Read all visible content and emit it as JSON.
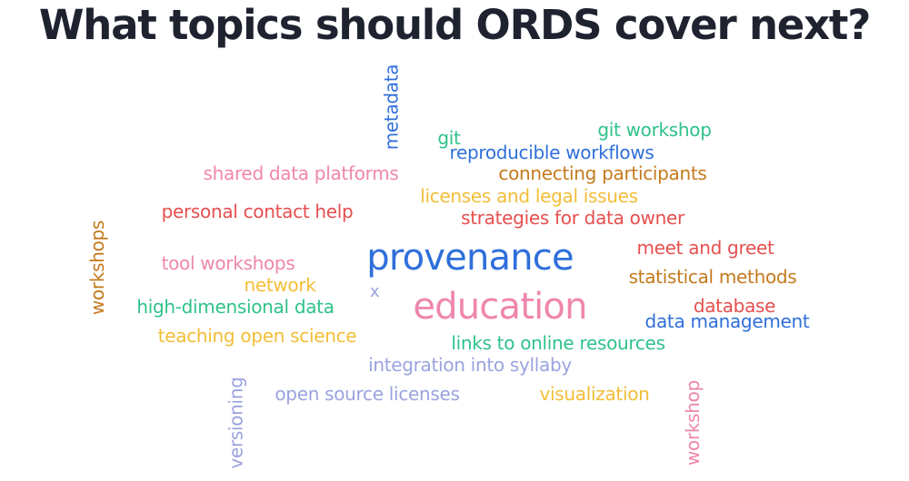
{
  "title": "What topics should ORDS cover next?",
  "colors": {
    "blue": "#2f6fdb",
    "pink": "#ef86ad",
    "green": "#2fc28a",
    "orange": "#c47a1c",
    "red": "#e64f4f",
    "yellow": "#f2be37",
    "lavender": "#9aa3df"
  },
  "words": [
    {
      "text": "metadata",
      "color": "blue"
    },
    {
      "text": "git",
      "color": "green"
    },
    {
      "text": "git workshop",
      "color": "green"
    },
    {
      "text": "reproducible workflows",
      "color": "blue"
    },
    {
      "text": "shared data platforms",
      "color": "pink"
    },
    {
      "text": "connecting participants",
      "color": "orange"
    },
    {
      "text": "licenses and legal issues",
      "color": "yellow"
    },
    {
      "text": "personal contact help",
      "color": "red"
    },
    {
      "text": "strategies for data owner",
      "color": "red"
    },
    {
      "text": "workshops",
      "color": "orange"
    },
    {
      "text": "meet and greet",
      "color": "red"
    },
    {
      "text": "provenance",
      "color": "blue"
    },
    {
      "text": "tool workshops",
      "color": "pink"
    },
    {
      "text": "statistical methods",
      "color": "orange"
    },
    {
      "text": "network",
      "color": "yellow"
    },
    {
      "text": "x",
      "color": "lavender"
    },
    {
      "text": "database",
      "color": "red"
    },
    {
      "text": "high-dimensional data",
      "color": "green"
    },
    {
      "text": "education",
      "color": "pink"
    },
    {
      "text": "data management",
      "color": "blue"
    },
    {
      "text": "teaching open science",
      "color": "yellow"
    },
    {
      "text": "links to online resources",
      "color": "green"
    },
    {
      "text": "integration into syllaby",
      "color": "lavender"
    },
    {
      "text": "versioning",
      "color": "lavender"
    },
    {
      "text": "open source licenses",
      "color": "lavender"
    },
    {
      "text": "visualization",
      "color": "yellow"
    },
    {
      "text": "workshop",
      "color": "pink"
    }
  ]
}
